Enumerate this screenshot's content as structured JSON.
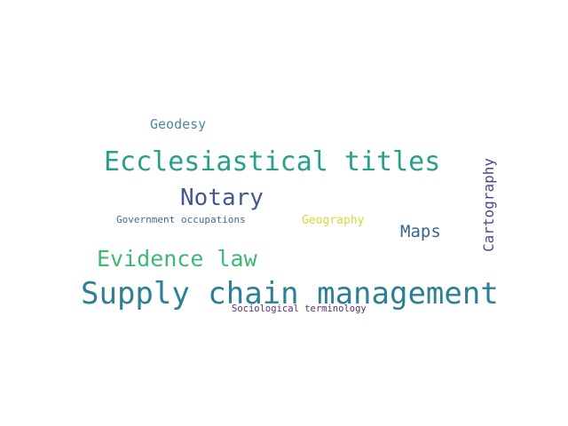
{
  "word_cloud": {
    "background_color": "#ffffff",
    "words": {
      "supply_chain_management": {
        "text": "Supply chain management",
        "color": "#2b8096"
      },
      "ecclesiastical_titles": {
        "text": "Ecclesiastical titles",
        "color": "#27a08a"
      },
      "notary": {
        "text": "Notary",
        "color": "#46578f"
      },
      "evidence_law": {
        "text": "Evidence law",
        "color": "#3aba73"
      },
      "maps": {
        "text": "Maps",
        "color": "#33668f"
      },
      "cartography": {
        "text": "Cartography",
        "color": "#56428a"
      },
      "geodesy": {
        "text": "Geodesy",
        "color": "#4a8a9f"
      },
      "geography": {
        "text": "Geography",
        "color": "#d3da3a"
      },
      "government_occupations": {
        "text": "Government occupations",
        "color": "#3c6c97"
      },
      "sociological_terminology": {
        "text": "Sociological terminology",
        "color": "#5c2e78"
      }
    }
  }
}
